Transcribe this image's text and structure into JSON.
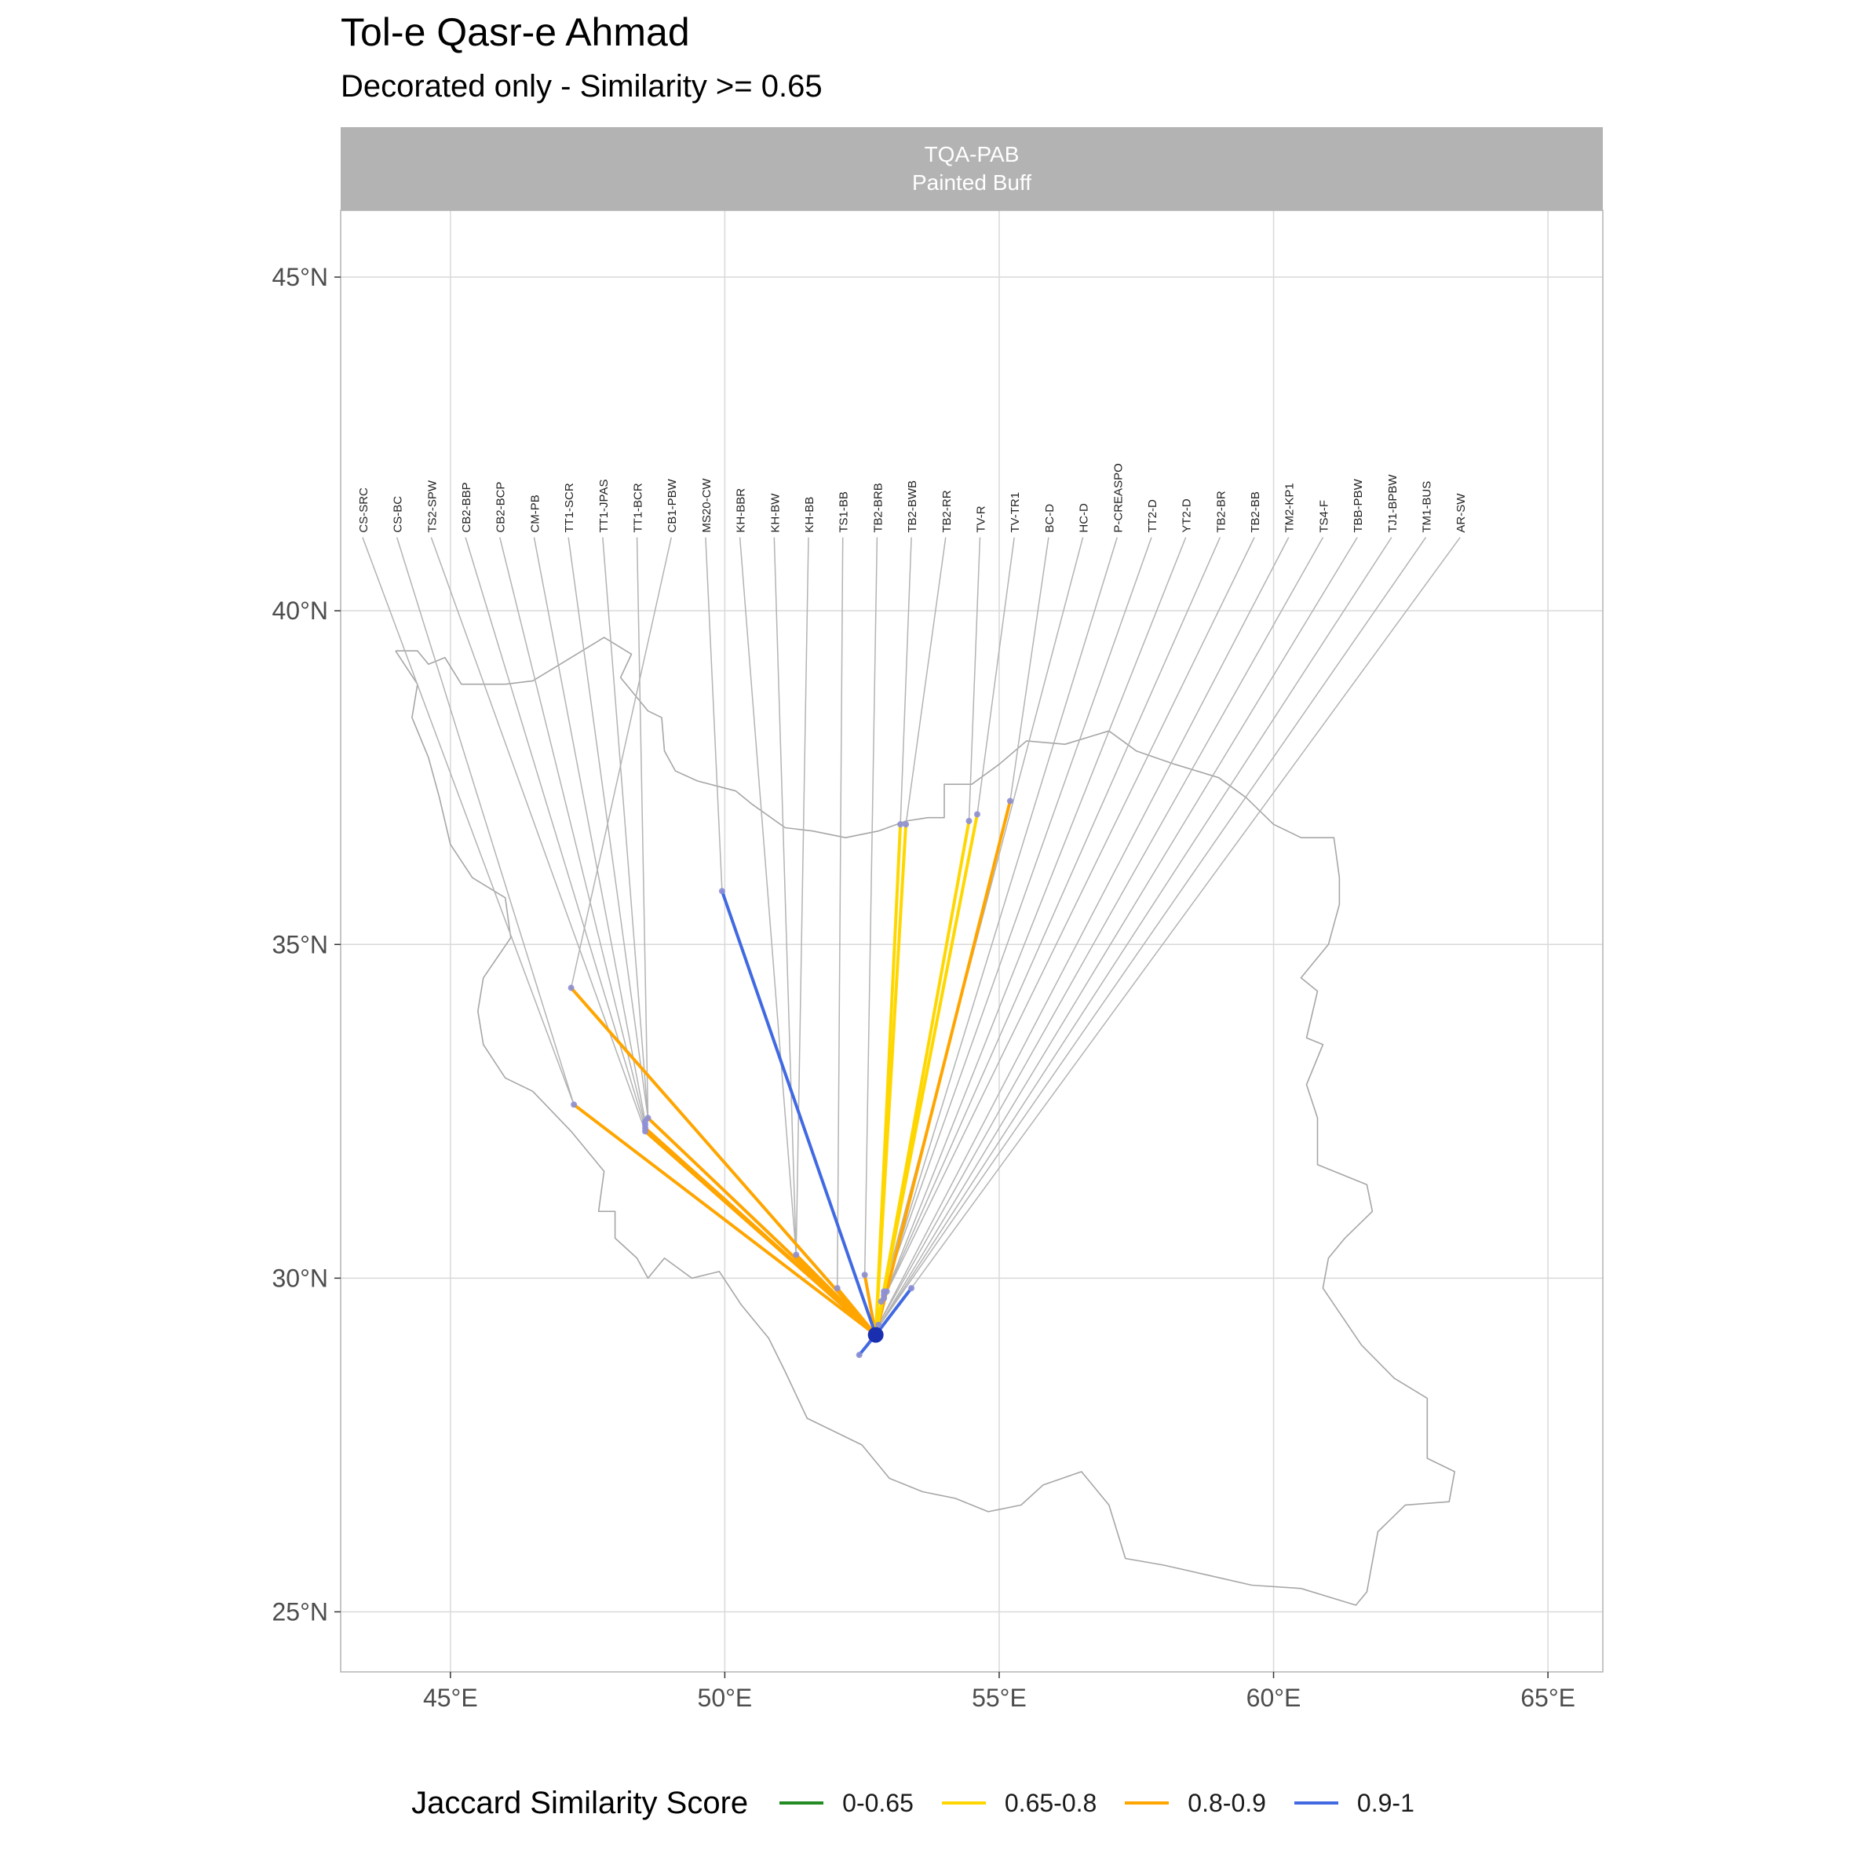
{
  "title": "Tol-e Qasr-e Ahmad",
  "subtitle": "Decorated only - Similarity >= 0.65",
  "facet": {
    "line1": "TQA-PAB",
    "line2": "Painted Buff"
  },
  "legend": {
    "title": "Jaccard Similarity Score",
    "items": [
      {
        "label": "0-0.65",
        "color": "#228B22"
      },
      {
        "label": "0.65-0.8",
        "color": "#FFD700"
      },
      {
        "label": "0.8-0.9",
        "color": "#FFA500"
      },
      {
        "label": "0.9-1",
        "color": "#4169E1"
      }
    ]
  },
  "colors": {
    "panel_border": "#b3b3b3",
    "grid": "#d9d9d9",
    "strip": "#b3b3b3",
    "leader": "#b3b3b3",
    "country": "#a6a6a6",
    "focal": "#1a2fb0"
  },
  "chart_data": {
    "type": "map",
    "projection": "equirectangular",
    "xlim": [
      43.0,
      66.0
    ],
    "ylim": [
      24.1,
      46.0
    ],
    "x_ticks": [
      {
        "value": 45,
        "label": "45°E"
      },
      {
        "value": 50,
        "label": "50°E"
      },
      {
        "value": 55,
        "label": "55°E"
      },
      {
        "value": 60,
        "label": "60°E"
      },
      {
        "value": 65,
        "label": "65°E"
      }
    ],
    "y_ticks": [
      {
        "value": 25,
        "label": "25°N"
      },
      {
        "value": 30,
        "label": "30°N"
      },
      {
        "value": 35,
        "label": "35°N"
      },
      {
        "value": 40,
        "label": "40°N"
      },
      {
        "value": 45,
        "label": "45°N"
      }
    ],
    "grid": true,
    "legend_position": "bottom",
    "focal_site": {
      "name": "Tol-e Qasr-e Ahmad",
      "lon": 52.75,
      "lat": 29.15
    },
    "label_lat": 41.1,
    "label_lon_range": [
      43.4,
      63.4
    ],
    "sites": [
      {
        "label": "CS-SRC",
        "lon": 47.25,
        "lat": 32.6,
        "score": null
      },
      {
        "label": "CS-BC",
        "lon": 47.25,
        "lat": 32.6,
        "score": null
      },
      {
        "label": "TS2-SPW",
        "lon": 48.55,
        "lat": 32.2,
        "score": null
      },
      {
        "label": "CB2-BBP",
        "lon": 48.55,
        "lat": 32.25,
        "score": null
      },
      {
        "label": "CB2-BCP",
        "lon": 48.55,
        "lat": 32.3,
        "score": null
      },
      {
        "label": "CM-PB",
        "lon": 48.55,
        "lat": 32.35,
        "score": null
      },
      {
        "label": "TT1-SCR",
        "lon": 48.6,
        "lat": 32.4,
        "score": null
      },
      {
        "label": "TT1-JPAS",
        "lon": 48.6,
        "lat": 32.4,
        "score": null
      },
      {
        "label": "TT1-BCR",
        "lon": 48.6,
        "lat": 32.4,
        "score": null
      },
      {
        "label": "CB1-PBW",
        "lon": 47.2,
        "lat": 34.35,
        "score": null
      },
      {
        "label": "MS20-CW",
        "lon": 49.95,
        "lat": 35.8,
        "score": null
      },
      {
        "label": "KH-BBR",
        "lon": 51.3,
        "lat": 30.35,
        "score": null
      },
      {
        "label": "KH-BW",
        "lon": 51.3,
        "lat": 30.35,
        "score": null
      },
      {
        "label": "KH-BB",
        "lon": 51.3,
        "lat": 30.35,
        "score": null
      },
      {
        "label": "TS1-BB",
        "lon": 52.05,
        "lat": 29.85,
        "score": null
      },
      {
        "label": "TB2-BRB",
        "lon": 52.55,
        "lat": 30.05,
        "score": null
      },
      {
        "label": "TB2-BWB",
        "lon": 53.2,
        "lat": 36.8,
        "score": null
      },
      {
        "label": "TB2-RR",
        "lon": 53.3,
        "lat": 36.8,
        "score": null
      },
      {
        "label": "TV-R",
        "lon": 54.45,
        "lat": 36.85,
        "score": null
      },
      {
        "label": "TV-TR1",
        "lon": 54.6,
        "lat": 36.95,
        "score": null
      },
      {
        "label": "BC-D",
        "lon": 55.2,
        "lat": 37.15,
        "score": null
      },
      {
        "label": "HC-D",
        "lon": 52.85,
        "lat": 29.65,
        "score": null
      },
      {
        "label": "P-CREASPO",
        "lon": 52.9,
        "lat": 29.75,
        "score": null
      },
      {
        "label": "TT2-D",
        "lon": 52.9,
        "lat": 29.8,
        "score": null
      },
      {
        "label": "YT2-D",
        "lon": 52.95,
        "lat": 29.8,
        "score": null
      },
      {
        "label": "TB2-BR",
        "lon": 52.9,
        "lat": 29.7,
        "score": null
      },
      {
        "label": "TB2-BB",
        "lon": 52.9,
        "lat": 29.7,
        "score": null
      },
      {
        "label": "TM2-KP1",
        "lon": 52.8,
        "lat": 29.3,
        "score": null
      },
      {
        "label": "TS4-F",
        "lon": 52.8,
        "lat": 29.3,
        "score": null
      },
      {
        "label": "TBB-PBW",
        "lon": 52.75,
        "lat": 29.2,
        "score": null
      },
      {
        "label": "TJ1-BPBW",
        "lon": 52.75,
        "lat": 29.2,
        "score": null
      },
      {
        "label": "TM1-BUS",
        "lon": 52.45,
        "lat": 28.85,
        "score": null
      },
      {
        "label": "AR-SW",
        "lon": 53.4,
        "lat": 29.85,
        "score": null
      }
    ],
    "connections": [
      {
        "from_lon": 47.2,
        "from_lat": 34.35,
        "category": "0.8-0.9"
      },
      {
        "from_lon": 47.25,
        "from_lat": 32.6,
        "category": "0.8-0.9"
      },
      {
        "from_lon": 48.55,
        "from_lat": 32.2,
        "category": "0.8-0.9"
      },
      {
        "from_lon": 48.55,
        "from_lat": 32.25,
        "category": "0.8-0.9"
      },
      {
        "from_lon": 48.6,
        "from_lat": 32.4,
        "category": "0.8-0.9"
      },
      {
        "from_lon": 51.3,
        "from_lat": 30.35,
        "category": "0.8-0.9"
      },
      {
        "from_lon": 52.05,
        "from_lat": 29.85,
        "category": "0.8-0.9"
      },
      {
        "from_lon": 52.55,
        "from_lat": 30.05,
        "category": "0.8-0.9"
      },
      {
        "from_lon": 52.9,
        "from_lat": 29.8,
        "category": "0.8-0.9"
      },
      {
        "from_lon": 55.2,
        "from_lat": 37.15,
        "category": "0.8-0.9"
      },
      {
        "from_lon": 49.95,
        "from_lat": 35.8,
        "category": "0.9-1"
      },
      {
        "from_lon": 52.45,
        "from_lat": 28.85,
        "category": "0.9-1"
      },
      {
        "from_lon": 53.4,
        "from_lat": 29.85,
        "category": "0.9-1"
      },
      {
        "from_lon": 53.2,
        "from_lat": 36.8,
        "category": "0.65-0.8"
      },
      {
        "from_lon": 53.3,
        "from_lat": 36.8,
        "category": "0.65-0.8"
      },
      {
        "from_lon": 54.45,
        "from_lat": 36.85,
        "category": "0.65-0.8"
      },
      {
        "from_lon": 54.6,
        "from_lat": 36.95,
        "category": "0.65-0.8"
      }
    ],
    "outline": [
      [
        44.0,
        39.4
      ],
      [
        44.4,
        39.4
      ],
      [
        44.6,
        39.2
      ],
      [
        44.9,
        39.3
      ],
      [
        45.2,
        38.9
      ],
      [
        45.6,
        38.9
      ],
      [
        46.0,
        38.9
      ],
      [
        46.5,
        38.95
      ],
      [
        47.0,
        39.2
      ],
      [
        47.4,
        39.4
      ],
      [
        47.8,
        39.6
      ],
      [
        48.3,
        39.35
      ],
      [
        48.1,
        39.0
      ],
      [
        48.6,
        38.5
      ],
      [
        48.85,
        38.4
      ],
      [
        48.9,
        37.9
      ],
      [
        49.1,
        37.6
      ],
      [
        49.5,
        37.45
      ],
      [
        50.2,
        37.3
      ],
      [
        50.5,
        37.1
      ],
      [
        51.1,
        36.75
      ],
      [
        51.6,
        36.7
      ],
      [
        52.2,
        36.6
      ],
      [
        52.8,
        36.7
      ],
      [
        53.3,
        36.85
      ],
      [
        53.7,
        36.9
      ],
      [
        54.0,
        36.9
      ],
      [
        54.0,
        37.4
      ],
      [
        54.5,
        37.4
      ],
      [
        55.0,
        37.7
      ],
      [
        55.5,
        38.05
      ],
      [
        56.2,
        38.0
      ],
      [
        57.0,
        38.2
      ],
      [
        57.5,
        37.9
      ],
      [
        58.2,
        37.7
      ],
      [
        59.0,
        37.5
      ],
      [
        59.5,
        37.2
      ],
      [
        60.0,
        36.8
      ],
      [
        60.5,
        36.6
      ],
      [
        61.1,
        36.6
      ],
      [
        61.2,
        36.0
      ],
      [
        61.2,
        35.6
      ],
      [
        61.0,
        35.0
      ],
      [
        60.5,
        34.5
      ],
      [
        60.8,
        34.3
      ],
      [
        60.6,
        33.6
      ],
      [
        60.9,
        33.5
      ],
      [
        60.6,
        32.9
      ],
      [
        60.8,
        32.4
      ],
      [
        60.8,
        31.7
      ],
      [
        61.7,
        31.4
      ],
      [
        61.8,
        31.0
      ],
      [
        61.3,
        30.6
      ],
      [
        61.0,
        30.3
      ],
      [
        60.9,
        29.85
      ],
      [
        61.6,
        29.0
      ],
      [
        62.2,
        28.5
      ],
      [
        62.8,
        28.2
      ],
      [
        62.8,
        27.3
      ],
      [
        63.3,
        27.1
      ],
      [
        63.2,
        26.65
      ],
      [
        62.4,
        26.6
      ],
      [
        61.9,
        26.2
      ],
      [
        61.7,
        25.3
      ],
      [
        61.5,
        25.1
      ],
      [
        60.5,
        25.35
      ],
      [
        59.6,
        25.4
      ],
      [
        58.8,
        25.55
      ],
      [
        58.0,
        25.7
      ],
      [
        57.3,
        25.8
      ],
      [
        57.0,
        26.6
      ],
      [
        56.5,
        27.1
      ],
      [
        55.8,
        26.9
      ],
      [
        55.4,
        26.6
      ],
      [
        54.8,
        26.5
      ],
      [
        54.2,
        26.7
      ],
      [
        53.6,
        26.8
      ],
      [
        53.0,
        27.0
      ],
      [
        52.5,
        27.5
      ],
      [
        51.5,
        27.9
      ],
      [
        51.1,
        28.6
      ],
      [
        50.8,
        29.1
      ],
      [
        50.3,
        29.6
      ],
      [
        49.9,
        30.1
      ],
      [
        49.4,
        30.0
      ],
      [
        48.9,
        30.3
      ],
      [
        48.6,
        30.0
      ],
      [
        48.4,
        30.3
      ],
      [
        48.0,
        30.6
      ],
      [
        48.0,
        31.0
      ],
      [
        47.7,
        31.0
      ],
      [
        47.8,
        31.6
      ],
      [
        47.2,
        32.2
      ],
      [
        46.5,
        32.8
      ],
      [
        46.0,
        33.0
      ],
      [
        45.6,
        33.5
      ],
      [
        45.5,
        34.0
      ],
      [
        45.6,
        34.5
      ],
      [
        46.1,
        35.1
      ],
      [
        46.0,
        35.7
      ],
      [
        45.4,
        36.0
      ],
      [
        45.0,
        36.5
      ],
      [
        44.8,
        37.2
      ],
      [
        44.6,
        37.8
      ],
      [
        44.3,
        38.4
      ],
      [
        44.4,
        38.9
      ],
      [
        44.0,
        39.4
      ]
    ]
  }
}
